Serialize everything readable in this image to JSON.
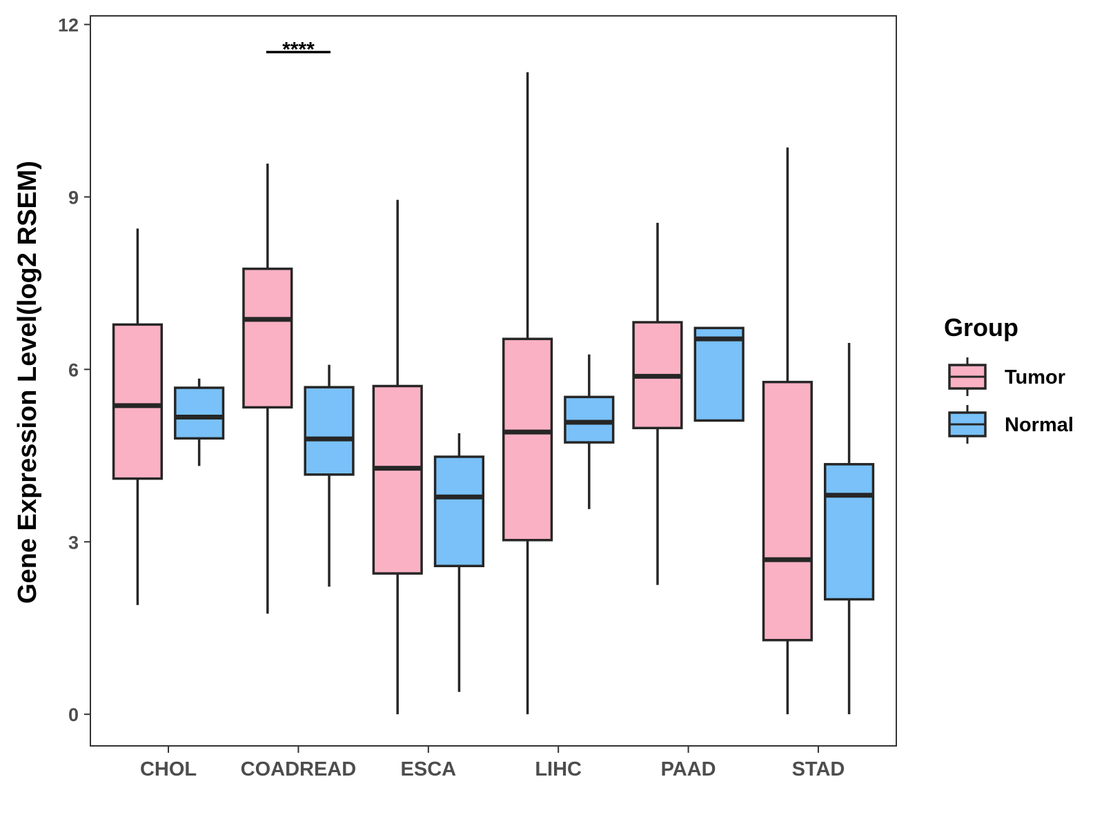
{
  "chart_data": {
    "type": "boxplot",
    "title": "",
    "xlabel": "",
    "ylabel": "Gene Expression Level(log2 RSEM)",
    "ylim": [
      -0.55,
      12.15
    ],
    "yticks": [
      0,
      3,
      6,
      9,
      12
    ],
    "ytick_labels": [
      "0",
      "3",
      "6",
      "9",
      "12"
    ],
    "grid": false,
    "categories": [
      "CHOL",
      "COADREAD",
      "ESCA",
      "LIHC",
      "PAAD",
      "STAD"
    ],
    "legend": {
      "title": "Group",
      "position": "right",
      "entries": [
        {
          "label": "Tumor",
          "color": "#fbb1c4"
        },
        {
          "label": "Normal",
          "color": "#79c1f8"
        }
      ]
    },
    "series": [
      {
        "name": "Tumor",
        "color": "#fbb1c4",
        "boxes": [
          {
            "min": 1.9,
            "q1": 4.1,
            "median": 5.37,
            "q3": 6.78,
            "max": 8.45
          },
          {
            "min": 1.75,
            "q1": 5.34,
            "median": 6.87,
            "q3": 7.75,
            "max": 9.58
          },
          {
            "min": 0.0,
            "q1": 2.45,
            "median": 4.28,
            "q3": 5.71,
            "max": 8.95
          },
          {
            "min": 0.0,
            "q1": 3.03,
            "median": 4.91,
            "q3": 6.53,
            "max": 11.17
          },
          {
            "min": 2.25,
            "q1": 4.98,
            "median": 5.88,
            "q3": 6.82,
            "max": 8.55
          },
          {
            "min": 0.0,
            "q1": 1.29,
            "median": 2.69,
            "q3": 5.78,
            "max": 9.86
          }
        ]
      },
      {
        "name": "Normal",
        "color": "#79c1f8",
        "boxes": [
          {
            "min": 4.32,
            "q1": 4.8,
            "median": 5.17,
            "q3": 5.68,
            "max": 5.84
          },
          {
            "min": 2.22,
            "q1": 4.17,
            "median": 4.79,
            "q3": 5.69,
            "max": 6.08
          },
          {
            "min": 0.39,
            "q1": 2.58,
            "median": 3.78,
            "q3": 4.48,
            "max": 4.89
          },
          {
            "min": 3.57,
            "q1": 4.73,
            "median": 5.08,
            "q3": 5.52,
            "max": 6.26
          },
          {
            "min": 5.11,
            "q1": 5.11,
            "median": 6.53,
            "q3": 6.72,
            "max": 6.72
          },
          {
            "min": 0.0,
            "q1": 2.0,
            "median": 3.81,
            "q3": 4.35,
            "max": 6.46
          }
        ]
      }
    ],
    "annotations": [
      {
        "category": "COADREAD",
        "text": "****",
        "y": 11.52
      }
    ]
  }
}
